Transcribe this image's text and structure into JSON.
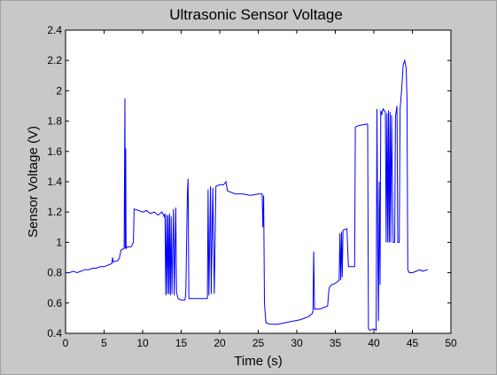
{
  "chart_data": {
    "type": "line",
    "title": "Ultrasonic Sensor Voltage",
    "xlabel": "Time (s)",
    "ylabel": "Sensor Voltage (V)",
    "xlim": [
      0,
      50
    ],
    "ylim": [
      0.4,
      2.4
    ],
    "xticks": [
      0,
      5,
      10,
      15,
      20,
      25,
      30,
      35,
      40,
      45,
      50
    ],
    "yticks": [
      0.4,
      0.6,
      0.8,
      1,
      1.2,
      1.4,
      1.6,
      1.8,
      2,
      2.2,
      2.4
    ],
    "grid": false,
    "legend": "none",
    "series": [
      {
        "color": "#0000ff",
        "points": [
          [
            0,
            0.8
          ],
          [
            0.5,
            0.8
          ],
          [
            1.0,
            0.81
          ],
          [
            1.5,
            0.8
          ],
          [
            2.0,
            0.81
          ],
          [
            2.5,
            0.82
          ],
          [
            3.0,
            0.82
          ],
          [
            3.5,
            0.83
          ],
          [
            4.0,
            0.83
          ],
          [
            4.5,
            0.84
          ],
          [
            5.0,
            0.84
          ],
          [
            5.5,
            0.85
          ],
          [
            6.0,
            0.86
          ],
          [
            6.1,
            0.9
          ],
          [
            6.2,
            0.87
          ],
          [
            6.8,
            0.88
          ],
          [
            7.0,
            0.9
          ],
          [
            7.2,
            0.95
          ],
          [
            7.6,
            0.96
          ],
          [
            7.7,
            1.95
          ],
          [
            7.75,
            0.96
          ],
          [
            7.8,
            1.62
          ],
          [
            7.85,
            0.96
          ],
          [
            8.0,
            0.97
          ],
          [
            8.5,
            0.97
          ],
          [
            8.8,
            1.0
          ],
          [
            8.9,
            1.22
          ],
          [
            9.5,
            1.21
          ],
          [
            10.0,
            1.2
          ],
          [
            10.5,
            1.21
          ],
          [
            11.0,
            1.19
          ],
          [
            11.5,
            1.2
          ],
          [
            12.0,
            1.18
          ],
          [
            12.5,
            1.2
          ],
          [
            12.8,
            1.17
          ],
          [
            12.9,
            1.19
          ],
          [
            13.0,
            0.65
          ],
          [
            13.1,
            1.18
          ],
          [
            13.2,
            0.66
          ],
          [
            13.3,
            1.18
          ],
          [
            13.4,
            0.66
          ],
          [
            13.5,
            1.19
          ],
          [
            13.6,
            0.65
          ],
          [
            13.7,
            1.17
          ],
          [
            13.8,
            0.66
          ],
          [
            14.0,
            1.22
          ],
          [
            14.1,
            0.65
          ],
          [
            14.3,
            1.23
          ],
          [
            14.4,
            0.67
          ],
          [
            14.6,
            0.63
          ],
          [
            15.0,
            0.62
          ],
          [
            15.5,
            0.62
          ],
          [
            15.6,
            0.66
          ],
          [
            15.8,
            1.32
          ],
          [
            15.9,
            1.42
          ],
          [
            16.0,
            0.63
          ],
          [
            17.0,
            0.63
          ],
          [
            18.0,
            0.63
          ],
          [
            18.4,
            0.63
          ],
          [
            18.5,
            1.35
          ],
          [
            18.6,
            0.65
          ],
          [
            18.8,
            1.37
          ],
          [
            18.9,
            0.66
          ],
          [
            19.1,
            1.36
          ],
          [
            19.3,
            0.66
          ],
          [
            19.5,
            1.37
          ],
          [
            20.0,
            1.38
          ],
          [
            20.5,
            1.38
          ],
          [
            20.8,
            1.4
          ],
          [
            21.0,
            1.34
          ],
          [
            21.5,
            1.33
          ],
          [
            22.0,
            1.32
          ],
          [
            23.0,
            1.32
          ],
          [
            24.0,
            1.31
          ],
          [
            25.0,
            1.32
          ],
          [
            25.5,
            1.32
          ],
          [
            25.6,
            1.1
          ],
          [
            25.7,
            1.31
          ],
          [
            25.8,
            0.6
          ],
          [
            26.0,
            0.47
          ],
          [
            26.5,
            0.46
          ],
          [
            27.5,
            0.46
          ],
          [
            28.5,
            0.47
          ],
          [
            29.5,
            0.48
          ],
          [
            30.5,
            0.49
          ],
          [
            31.5,
            0.51
          ],
          [
            32.0,
            0.53
          ],
          [
            32.1,
            0.55
          ],
          [
            32.2,
            0.94
          ],
          [
            32.3,
            0.56
          ],
          [
            33.0,
            0.56
          ],
          [
            33.5,
            0.57
          ],
          [
            34.0,
            0.58
          ],
          [
            34.2,
            0.7
          ],
          [
            34.5,
            0.72
          ],
          [
            35.0,
            0.73
          ],
          [
            35.5,
            0.75
          ],
          [
            35.6,
            1.06
          ],
          [
            35.7,
            0.75
          ],
          [
            35.8,
            1.07
          ],
          [
            35.9,
            0.77
          ],
          [
            36.0,
            1.08
          ],
          [
            36.5,
            1.09
          ],
          [
            36.7,
            0.84
          ],
          [
            37.5,
            0.84
          ],
          [
            37.6,
            1.76
          ],
          [
            38.0,
            1.77
          ],
          [
            39.0,
            1.78
          ],
          [
            39.2,
            1.78
          ],
          [
            39.3,
            0.43
          ],
          [
            39.5,
            0.42
          ],
          [
            40.0,
            0.43
          ],
          [
            40.3,
            0.42
          ],
          [
            40.4,
            1.88
          ],
          [
            40.5,
            1.0
          ],
          [
            40.6,
            0.48
          ],
          [
            40.7,
            1.4
          ],
          [
            40.8,
            0.72
          ],
          [
            40.9,
            1.87
          ],
          [
            41.0,
            1.84
          ],
          [
            41.2,
            1.88
          ],
          [
            41.5,
            1.86
          ],
          [
            41.6,
            1.0
          ],
          [
            41.7,
            1.85
          ],
          [
            41.8,
            1.0
          ],
          [
            41.9,
            1.87
          ],
          [
            42.0,
            1.0
          ],
          [
            42.1,
            1.86
          ],
          [
            42.2,
            1.0
          ],
          [
            42.3,
            1.84
          ],
          [
            42.5,
            1.0
          ],
          [
            42.7,
            1.0
          ],
          [
            42.8,
            1.83
          ],
          [
            43.0,
            1.9
          ],
          [
            43.1,
            1.0
          ],
          [
            43.3,
            1.0
          ],
          [
            43.4,
            1.88
          ],
          [
            43.6,
            2.0
          ],
          [
            43.8,
            2.17
          ],
          [
            44.0,
            2.2
          ],
          [
            44.2,
            2.15
          ],
          [
            44.3,
            1.95
          ],
          [
            44.4,
            0.82
          ],
          [
            44.6,
            0.8
          ],
          [
            45.0,
            0.8
          ],
          [
            45.5,
            0.81
          ],
          [
            46.0,
            0.82
          ],
          [
            46.3,
            0.81
          ],
          [
            47.0,
            0.82
          ]
        ]
      }
    ]
  }
}
